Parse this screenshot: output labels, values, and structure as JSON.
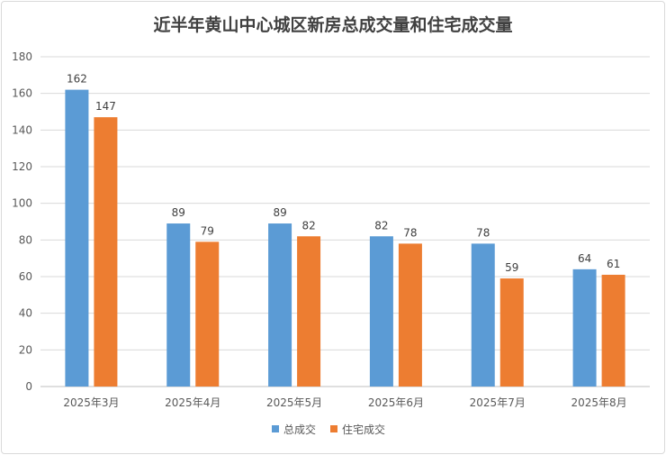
{
  "chart_data": {
    "type": "bar",
    "title": "近半年黄山中心城区新房总成交量和住宅成交量",
    "categories": [
      "2025年3月",
      "2025年4月",
      "2025年5月",
      "2025年6月",
      "2025年7月",
      "2025年8月"
    ],
    "series": [
      {
        "name": "总成交",
        "values": [
          162,
          89,
          89,
          82,
          78,
          64
        ],
        "color": "#5b9bd5"
      },
      {
        "name": "住宅成交",
        "values": [
          147,
          79,
          82,
          78,
          59,
          61
        ],
        "color": "#ed7d31"
      }
    ],
    "ylim": [
      0,
      180
    ],
    "yticks": [
      0,
      20,
      40,
      60,
      80,
      100,
      120,
      140,
      160,
      180
    ],
    "grid": true,
    "legend": "bottom",
    "data_labels": true
  }
}
